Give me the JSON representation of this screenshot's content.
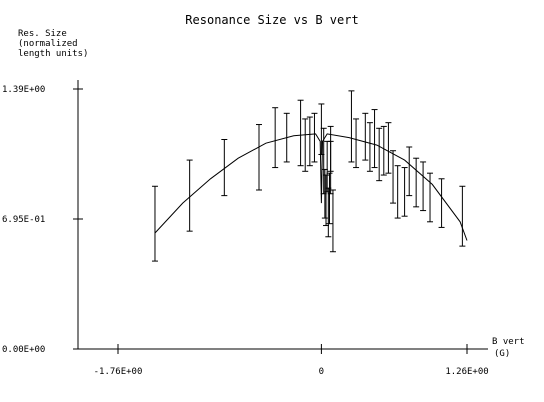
{
  "chart_data": {
    "type": "scatter",
    "title": "Resonance Size vs B vert",
    "ylabel_lines": [
      "Res. Size",
      "(normalized",
      "length units)"
    ],
    "xlabel_lines": [
      "B vert",
      "(G)"
    ],
    "x_ticks": [
      {
        "value": -1.76,
        "label": "-1.76E+00"
      },
      {
        "value": 0,
        "label": "0"
      },
      {
        "value": 1.26,
        "label": "1.26E+00"
      }
    ],
    "y_ticks": [
      {
        "value": 0,
        "label": "0.00E+00"
      },
      {
        "value": 0.695,
        "label": "6.95E-01"
      },
      {
        "value": 1.39,
        "label": "1.39E+00"
      }
    ],
    "xlim": [
      -1.76,
      1.26
    ],
    "ylim": [
      0,
      1.39
    ],
    "grid": false,
    "series": [
      {
        "points": [
          {
            "x": -1.44,
            "y": 0.67,
            "lo": 0.47,
            "hi": 0.87
          },
          {
            "x": -1.14,
            "y": 0.82,
            "lo": 0.63,
            "hi": 1.01
          },
          {
            "x": -0.84,
            "y": 0.96,
            "lo": 0.82,
            "hi": 1.12
          },
          {
            "x": -0.54,
            "y": 1.03,
            "lo": 0.85,
            "hi": 1.2
          },
          {
            "x": -0.4,
            "y": 1.12,
            "lo": 0.97,
            "hi": 1.29
          },
          {
            "x": -0.3,
            "y": 1.13,
            "lo": 1.0,
            "hi": 1.26
          },
          {
            "x": -0.18,
            "y": 1.14,
            "lo": 0.98,
            "hi": 1.33
          },
          {
            "x": -0.14,
            "y": 1.09,
            "lo": 0.95,
            "hi": 1.23
          },
          {
            "x": -0.1,
            "y": 1.11,
            "lo": 0.98,
            "hi": 1.24
          },
          {
            "x": -0.06,
            "y": 1.13,
            "lo": 1.0,
            "hi": 1.26
          },
          {
            "x": 0.0,
            "y": 1.17,
            "lo": 1.04,
            "hi": 1.31
          },
          {
            "x": 0.02,
            "y": 1.03,
            "lo": 0.83,
            "hi": 1.18
          },
          {
            "x": 0.03,
            "y": 0.82,
            "lo": 0.7,
            "hi": 0.96
          },
          {
            "x": 0.04,
            "y": 0.79,
            "lo": 0.66,
            "hi": 0.93
          },
          {
            "x": 0.05,
            "y": 0.97,
            "lo": 0.84,
            "hi": 1.11
          },
          {
            "x": 0.06,
            "y": 0.73,
            "lo": 0.6,
            "hi": 0.86
          },
          {
            "x": 0.07,
            "y": 0.8,
            "lo": 0.67,
            "hi": 0.94
          },
          {
            "x": 0.08,
            "y": 1.07,
            "lo": 0.95,
            "hi": 1.19
          },
          {
            "x": 0.08,
            "y": 0.98,
            "lo": 0.83,
            "hi": 1.11
          },
          {
            "x": 0.1,
            "y": 0.68,
            "lo": 0.52,
            "hi": 0.85
          },
          {
            "x": 0.26,
            "y": 1.19,
            "lo": 1.0,
            "hi": 1.38
          },
          {
            "x": 0.3,
            "y": 1.1,
            "lo": 0.97,
            "hi": 1.23
          },
          {
            "x": 0.38,
            "y": 1.14,
            "lo": 1.01,
            "hi": 1.26
          },
          {
            "x": 0.42,
            "y": 1.08,
            "lo": 0.95,
            "hi": 1.21
          },
          {
            "x": 0.46,
            "y": 1.13,
            "lo": 0.97,
            "hi": 1.28
          },
          {
            "x": 0.5,
            "y": 1.04,
            "lo": 0.9,
            "hi": 1.18
          },
          {
            "x": 0.54,
            "y": 1.06,
            "lo": 0.93,
            "hi": 1.19
          },
          {
            "x": 0.58,
            "y": 1.08,
            "lo": 0.94,
            "hi": 1.21
          },
          {
            "x": 0.62,
            "y": 0.92,
            "lo": 0.78,
            "hi": 1.06
          },
          {
            "x": 0.66,
            "y": 0.84,
            "lo": 0.7,
            "hi": 0.98
          },
          {
            "x": 0.72,
            "y": 0.84,
            "lo": 0.71,
            "hi": 0.97
          },
          {
            "x": 0.76,
            "y": 0.95,
            "lo": 0.82,
            "hi": 1.08
          },
          {
            "x": 0.82,
            "y": 0.89,
            "lo": 0.76,
            "hi": 1.02
          },
          {
            "x": 0.88,
            "y": 0.87,
            "lo": 0.74,
            "hi": 1.0
          },
          {
            "x": 0.94,
            "y": 0.81,
            "lo": 0.68,
            "hi": 0.94
          },
          {
            "x": 1.04,
            "y": 0.78,
            "lo": 0.65,
            "hi": 0.91
          },
          {
            "x": 1.22,
            "y": 0.71,
            "lo": 0.55,
            "hi": 0.87
          }
        ]
      }
    ],
    "fit": {
      "points": [
        {
          "x": -1.44,
          "y": 0.62
        },
        {
          "x": -1.2,
          "y": 0.78
        },
        {
          "x": -0.96,
          "y": 0.91
        },
        {
          "x": -0.72,
          "y": 1.02
        },
        {
          "x": -0.48,
          "y": 1.1
        },
        {
          "x": -0.24,
          "y": 1.14
        },
        {
          "x": -0.05,
          "y": 1.15
        },
        {
          "x": -0.01,
          "y": 1.11
        },
        {
          "x": 0.0,
          "y": 0.78
        },
        {
          "x": 0.01,
          "y": 1.11
        },
        {
          "x": 0.05,
          "y": 1.15
        },
        {
          "x": 0.24,
          "y": 1.13
        },
        {
          "x": 0.48,
          "y": 1.09
        },
        {
          "x": 0.72,
          "y": 1.01
        },
        {
          "x": 0.96,
          "y": 0.88
        },
        {
          "x": 1.2,
          "y": 0.68
        },
        {
          "x": 1.26,
          "y": 0.58
        }
      ]
    }
  }
}
